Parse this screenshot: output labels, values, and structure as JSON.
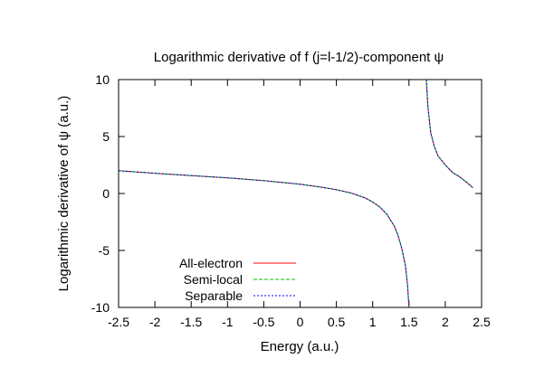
{
  "chart_data": {
    "type": "line",
    "title": "Logarithmic derivative of f (j=l-1/2)-component ψ",
    "xlabel": "Energy (a.u.)",
    "ylabel": "Logarithmic derivative of ψ (a.u.)",
    "xlim": [
      -2.5,
      2.5
    ],
    "ylim": [
      -10,
      10
    ],
    "xticks": [
      "-2.5",
      "-2",
      "-1.5",
      "-1",
      "-0.5",
      "0",
      "0.5",
      "1",
      "1.5",
      "2",
      "2.5"
    ],
    "yticks": [
      "-10",
      "-5",
      "0",
      "5",
      "10"
    ],
    "xtick_values": [
      -2.5,
      -2,
      -1.5,
      -1,
      -0.5,
      0,
      0.5,
      1,
      1.5,
      2,
      2.5
    ],
    "ytick_values": [
      -10,
      -5,
      0,
      5,
      10
    ],
    "grid": false,
    "legend_position": "bottom-left",
    "series": [
      {
        "name": "All-electron",
        "color": "#ff0000",
        "dash": "solid",
        "branches": [
          {
            "x": [
              -2.5,
              -2.0,
              -1.5,
              -1.0,
              -0.5,
              0.0,
              0.3,
              0.5,
              0.7,
              0.9,
              1.0,
              1.1,
              1.2,
              1.3,
              1.35,
              1.4,
              1.45,
              1.48,
              1.5
            ],
            "y": [
              2.0,
              1.78,
              1.57,
              1.37,
              1.13,
              0.82,
              0.55,
              0.33,
              0.05,
              -0.4,
              -0.75,
              -1.2,
              -1.85,
              -2.9,
              -3.7,
              -4.8,
              -6.3,
              -8.0,
              -10.0
            ]
          },
          {
            "x": [
              1.74,
              1.76,
              1.8,
              1.85,
              1.9,
              2.0,
              2.1,
              2.2,
              2.3,
              2.38
            ],
            "y": [
              10.0,
              7.6,
              5.3,
              4.1,
              3.3,
              2.5,
              1.85,
              1.45,
              0.95,
              0.5
            ]
          }
        ]
      },
      {
        "name": "Semi-local",
        "color": "#00c000",
        "dash": "4,2",
        "branches": [
          {
            "x": [
              -2.5,
              -2.0,
              -1.5,
              -1.0,
              -0.5,
              0.0,
              0.3,
              0.5,
              0.7,
              0.9,
              1.0,
              1.1,
              1.2,
              1.3,
              1.35,
              1.4,
              1.45,
              1.48,
              1.5
            ],
            "y": [
              2.0,
              1.78,
              1.57,
              1.37,
              1.13,
              0.82,
              0.55,
              0.33,
              0.05,
              -0.4,
              -0.75,
              -1.2,
              -1.85,
              -2.9,
              -3.7,
              -4.8,
              -6.3,
              -8.0,
              -10.0
            ]
          },
          {
            "x": [
              1.74,
              1.76,
              1.8,
              1.85,
              1.9,
              2.0,
              2.1,
              2.2,
              2.3,
              2.38
            ],
            "y": [
              10.0,
              7.6,
              5.3,
              4.1,
              3.3,
              2.5,
              1.85,
              1.45,
              0.95,
              0.5
            ]
          }
        ]
      },
      {
        "name": "Separable",
        "color": "#0000ff",
        "dash": "2,2",
        "branches": [
          {
            "x": [
              -2.5,
              -2.0,
              -1.5,
              -1.0,
              -0.5,
              0.0,
              0.3,
              0.5,
              0.7,
              0.9,
              1.0,
              1.1,
              1.2,
              1.3,
              1.35,
              1.4,
              1.45,
              1.48,
              1.5
            ],
            "y": [
              2.0,
              1.78,
              1.57,
              1.37,
              1.13,
              0.82,
              0.55,
              0.33,
              0.05,
              -0.4,
              -0.75,
              -1.2,
              -1.85,
              -2.9,
              -3.7,
              -4.8,
              -6.3,
              -8.0,
              -10.0
            ]
          },
          {
            "x": [
              1.74,
              1.76,
              1.8,
              1.85,
              1.9,
              2.0,
              2.1,
              2.2,
              2.3,
              2.38
            ],
            "y": [
              10.0,
              7.6,
              5.3,
              4.1,
              3.3,
              2.5,
              1.85,
              1.45,
              0.95,
              0.5
            ]
          }
        ]
      }
    ]
  }
}
